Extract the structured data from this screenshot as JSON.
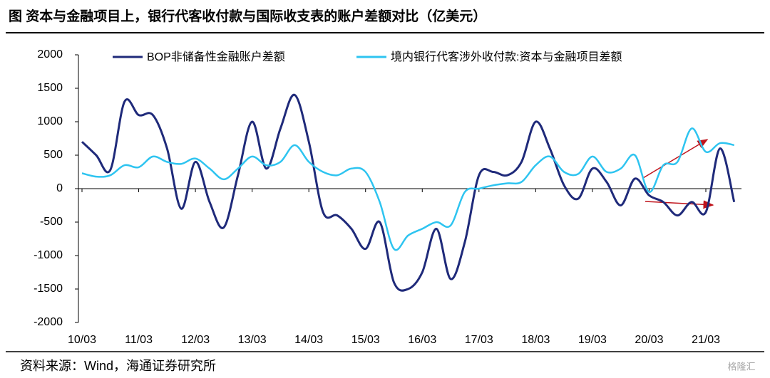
{
  "chart_data": {
    "type": "line",
    "title": "图  资本与金融项目上，银行代客收付款与国际收支表的账户差额对比（亿美元）",
    "source": "资料来源：Wind，海通证券研究所",
    "watermark": "格隆汇",
    "categories": [
      "10/03",
      null,
      null,
      null,
      "11/03",
      null,
      null,
      null,
      "12/03",
      null,
      null,
      null,
      "13/03",
      null,
      null,
      null,
      "14/03",
      null,
      null,
      null,
      "15/03",
      null,
      null,
      null,
      "16/03",
      null,
      null,
      null,
      "17/03",
      null,
      null,
      null,
      "18/03",
      null,
      null,
      null,
      "19/03",
      null,
      null,
      null,
      "20/03",
      null,
      null,
      null,
      "21/03",
      null,
      null
    ],
    "series": [
      {
        "name": "BOP非储备性金融账户差额",
        "color": "#1f2a7a",
        "values": [
          700,
          500,
          280,
          1300,
          1100,
          1100,
          600,
          -300,
          400,
          -200,
          -580,
          200,
          1000,
          300,
          900,
          1400,
          700,
          -350,
          -400,
          -600,
          -900,
          -500,
          -1400,
          -1500,
          -1250,
          -600,
          -1350,
          -800,
          200,
          250,
          200,
          400,
          1000,
          600,
          50,
          -150,
          300,
          100,
          -250,
          150,
          -100,
          -200,
          -400,
          -200,
          -350,
          600,
          -200
        ]
      },
      {
        "name": "境内银行代客涉外收付款:资本与金融项目差额",
        "color": "#2ec4f0",
        "values": [
          230,
          180,
          200,
          350,
          320,
          480,
          400,
          370,
          450,
          300,
          140,
          300,
          480,
          350,
          400,
          650,
          400,
          250,
          200,
          300,
          250,
          -200,
          -900,
          -700,
          -600,
          -500,
          -550,
          -50,
          0,
          50,
          80,
          100,
          350,
          480,
          250,
          220,
          480,
          250,
          300,
          500,
          -50,
          350,
          400,
          900,
          550,
          680,
          650
        ]
      }
    ],
    "ylim": [
      -2000,
      2000
    ],
    "yticks": [
      -2000,
      -1500,
      -1000,
      -500,
      0,
      500,
      1000,
      1500,
      2000
    ],
    "grid": false
  }
}
